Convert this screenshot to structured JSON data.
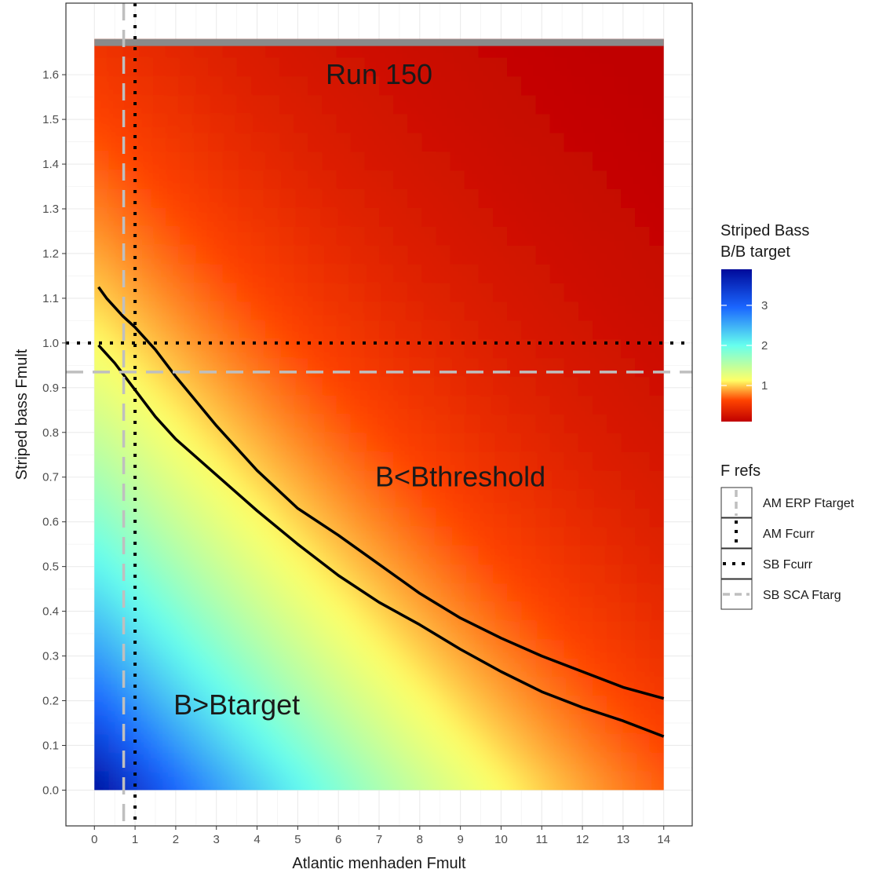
{
  "chart_data": {
    "type": "heatmap",
    "xlabel": "Atlantic menhaden Fmult",
    "ylabel": "Striped bass Fmult",
    "xlim": [
      -0.7,
      14.7
    ],
    "ylim": [
      -0.08,
      1.76
    ],
    "x_ticks": [
      0,
      1,
      2,
      3,
      4,
      5,
      6,
      7,
      8,
      9,
      10,
      11,
      12,
      13,
      14
    ],
    "y_ticks": [
      0.0,
      0.1,
      0.2,
      0.3,
      0.4,
      0.5,
      0.6,
      0.7,
      0.8,
      0.9,
      1.0,
      1.1,
      1.2,
      1.3,
      1.4,
      1.5,
      1.6
    ],
    "grid": true,
    "heatmap_extent": {
      "x": [
        0,
        14
      ],
      "y": [
        0,
        1.68
      ]
    },
    "fill": {
      "name": "Striped Bass B/B target",
      "ticks": [
        1,
        2,
        3
      ],
      "range": [
        0.1,
        3.9
      ],
      "colors": [
        "#c00000",
        "#ff4400",
        "#ffff66",
        "#66ffee",
        "#1a66ff",
        "#000a9a"
      ]
    },
    "contours": [
      {
        "level": "Bthreshold",
        "x": [
          0.1,
          0.3,
          0.7,
          1.0,
          1.5,
          2.0,
          3.0,
          4.0,
          5.0,
          6.0,
          7.0,
          8.0,
          9.0,
          10.0,
          11.0,
          12.0,
          13.0,
          14.0
        ],
        "y": [
          1.125,
          1.1,
          1.06,
          1.035,
          0.985,
          0.925,
          0.815,
          0.715,
          0.63,
          0.57,
          0.505,
          0.44,
          0.385,
          0.34,
          0.3,
          0.265,
          0.23,
          0.205
        ]
      },
      {
        "level": "Btarget",
        "x": [
          0.1,
          0.5,
          1.0,
          1.5,
          2.0,
          3.0,
          4.0,
          5.0,
          6.0,
          7.0,
          8.0,
          9.0,
          10.0,
          11.0,
          12.0,
          13.0,
          14.0
        ],
        "y": [
          0.995,
          0.955,
          0.895,
          0.835,
          0.785,
          0.705,
          0.625,
          0.55,
          0.48,
          0.42,
          0.37,
          0.315,
          0.265,
          0.22,
          0.185,
          0.155,
          0.12
        ]
      }
    ],
    "reference_lines": [
      {
        "name": "AM ERP Ftarget",
        "orientation": "vertical",
        "value": 0.72,
        "style": "dashed",
        "color": "#bfbfbf"
      },
      {
        "name": "AM Fcurr",
        "orientation": "vertical",
        "value": 1.0,
        "style": "dotted",
        "color": "#000000"
      },
      {
        "name": "SB Fcurr",
        "orientation": "horizontal",
        "value": 1.0,
        "style": "dotted",
        "color": "#000000"
      },
      {
        "name": "SB SCA Ftarg",
        "orientation": "horizontal",
        "value": 0.935,
        "style": "dashed",
        "color": "#bfbfbf"
      }
    ],
    "annotations": [
      {
        "text": "Run 150",
        "x": 7,
        "y": 1.6
      },
      {
        "text": "B<Bthreshold",
        "x": 9,
        "y": 0.7
      },
      {
        "text": "B>Btarget",
        "x": 3.5,
        "y": 0.19
      }
    ],
    "legend": {
      "fill_title_lines": [
        "Striped Bass",
        "B/B target"
      ],
      "lines_title": "F refs",
      "placement": "right"
    }
  }
}
